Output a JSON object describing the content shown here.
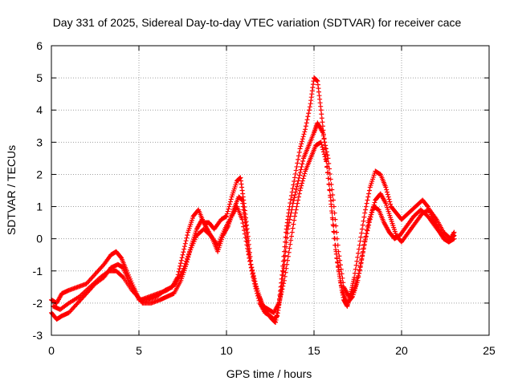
{
  "chart_data": {
    "type": "scatter",
    "title": "Day 331 of 2025, Sidereal Day-to-day VTEC variation (SDTVAR) for receiver cace",
    "xlabel": "GPS time / hours",
    "ylabel": "SDTVAR / TECUs",
    "xlim": [
      0,
      25
    ],
    "ylim": [
      -3,
      6
    ],
    "xticks": [
      0,
      5,
      10,
      15,
      20,
      25
    ],
    "yticks": [
      -3,
      -2,
      -1,
      0,
      1,
      2,
      3,
      4,
      5,
      6
    ],
    "grid": true,
    "marker": "plus",
    "color": "#ff0000",
    "series": [
      {
        "x": [
          0,
          0.3,
          0.6,
          1.0,
          1.5,
          2.0,
          2.5,
          3.0,
          3.4,
          3.7,
          4.0,
          4.3,
          4.7,
          5.0,
          5.5,
          6.0,
          6.5,
          6.9,
          7.2,
          7.5,
          7.8,
          8.1,
          8.4,
          8.7,
          9.0,
          9.3,
          9.7,
          10.0,
          10.3,
          10.6,
          10.8,
          11.0,
          11.2,
          11.4,
          11.7,
          12.0,
          12.3,
          12.6,
          12.8,
          13.0,
          13.2,
          13.4,
          13.6,
          13.9,
          14.2,
          14.5,
          14.8,
          15.0,
          15.2,
          15.4,
          15.6,
          15.9,
          16.2,
          16.5,
          16.7,
          16.9,
          17.1,
          17.3,
          17.6,
          17.9,
          18.2,
          18.5,
          18.8,
          19.1,
          19.4,
          19.7,
          20.0,
          20.4,
          20.8,
          21.2,
          21.5,
          21.8,
          22.1,
          22.4,
          22.7,
          23.0
        ],
        "y": [
          -1.9,
          -2.0,
          -1.7,
          -1.6,
          -1.5,
          -1.4,
          -1.1,
          -0.8,
          -0.5,
          -0.4,
          -0.6,
          -1.0,
          -1.5,
          -1.9,
          -1.9,
          -1.8,
          -1.6,
          -1.5,
          -1.2,
          -0.5,
          0.2,
          0.7,
          0.9,
          0.5,
          0.5,
          0.3,
          0.6,
          0.7,
          1.3,
          1.8,
          1.9,
          1.1,
          0.2,
          -0.8,
          -1.5,
          -2.0,
          -2.3,
          -2.5,
          -2.6,
          -2.0,
          -1.0,
          0.2,
          1.0,
          1.9,
          2.8,
          3.4,
          4.2,
          5.0,
          4.9,
          4.0,
          3.0,
          1.5,
          -0.2,
          -1.3,
          -1.9,
          -2.1,
          -1.7,
          -1.2,
          -0.2,
          0.8,
          1.6,
          2.1,
          2.0,
          1.6,
          1.0,
          0.8,
          0.6,
          0.8,
          1.0,
          1.2,
          1.0,
          0.6,
          0.3,
          0.0,
          -0.1,
          0.2
        ]
      },
      {
        "x": [
          0,
          0.3,
          0.6,
          1.0,
          1.5,
          2.0,
          2.5,
          3.0,
          3.4,
          3.8,
          4.1,
          4.4,
          4.8,
          5.2,
          5.7,
          6.2,
          6.6,
          7.0,
          7.4,
          7.7,
          8.0,
          8.3,
          8.6,
          8.9,
          9.2,
          9.5,
          9.8,
          10.1,
          10.4,
          10.7,
          10.9,
          11.1,
          11.3,
          11.6,
          11.9,
          12.2,
          12.5,
          12.7,
          12.9,
          13.1,
          13.3,
          13.5,
          13.8,
          14.1,
          14.4,
          14.7,
          15.0,
          15.2,
          15.5,
          15.8,
          16.1,
          16.4,
          16.7,
          17.0,
          17.3,
          17.6,
          17.9,
          18.2,
          18.5,
          18.8,
          19.1,
          19.4,
          19.7,
          20.0,
          20.4,
          20.8,
          21.2,
          21.6,
          22.0,
          22.4,
          22.8,
          23.0
        ],
        "y": [
          -2.3,
          -2.5,
          -2.4,
          -2.3,
          -2.0,
          -1.7,
          -1.4,
          -1.2,
          -0.9,
          -0.8,
          -0.9,
          -1.3,
          -1.7,
          -2.0,
          -2.0,
          -1.9,
          -1.8,
          -1.7,
          -1.3,
          -0.8,
          -0.2,
          0.3,
          0.6,
          0.3,
          0.0,
          -0.4,
          0.1,
          0.4,
          0.9,
          1.3,
          1.2,
          0.4,
          -0.6,
          -1.4,
          -2.0,
          -2.3,
          -2.4,
          -2.5,
          -2.4,
          -1.7,
          -0.8,
          0.3,
          1.1,
          1.8,
          2.5,
          2.9,
          3.3,
          3.6,
          3.3,
          2.5,
          1.2,
          -0.4,
          -1.5,
          -1.8,
          -1.6,
          -1.0,
          -0.1,
          0.6,
          1.2,
          1.4,
          1.1,
          0.6,
          0.1,
          -0.1,
          0.2,
          0.5,
          0.8,
          0.9,
          0.6,
          0.2,
          0.0,
          0.1
        ]
      },
      {
        "x": [
          0.1,
          0.5,
          1.0,
          1.6,
          2.2,
          2.8,
          3.3,
          3.7,
          4.1,
          4.6,
          5.1,
          5.6,
          6.1,
          6.6,
          7.1,
          7.5,
          7.9,
          8.3,
          8.7,
          9.1,
          9.5,
          9.9,
          10.3,
          10.6,
          10.9,
          11.2,
          11.5,
          11.8,
          12.1,
          12.4,
          12.7,
          13.0,
          13.3,
          13.6,
          13.9,
          14.2,
          14.5,
          14.8,
          15.1,
          15.4,
          15.7,
          16.0,
          16.3,
          16.6,
          16.9,
          17.2,
          17.5,
          17.8,
          18.1,
          18.4,
          18.7,
          19.0,
          19.3,
          19.6,
          19.9,
          20.3,
          20.7,
          21.1,
          21.5,
          21.9,
          22.3,
          22.7,
          23.0
        ],
        "y": [
          -2.1,
          -2.2,
          -2.0,
          -1.8,
          -1.5,
          -1.2,
          -1.0,
          -1.0,
          -1.2,
          -1.6,
          -1.9,
          -1.8,
          -1.7,
          -1.6,
          -1.4,
          -1.0,
          -0.4,
          0.1,
          0.3,
          0.1,
          -0.2,
          0.3,
          0.7,
          1.0,
          0.6,
          -0.3,
          -1.1,
          -1.7,
          -2.1,
          -2.2,
          -2.3,
          -2.0,
          -1.3,
          -0.3,
          0.7,
          1.5,
          2.1,
          2.5,
          2.9,
          3.0,
          2.4,
          1.0,
          -0.6,
          -1.6,
          -2.0,
          -1.8,
          -1.3,
          -0.4,
          0.5,
          1.0,
          0.9,
          0.5,
          0.2,
          0.0,
          0.1,
          0.4,
          0.7,
          0.9,
          0.7,
          0.4,
          0.1,
          -0.1,
          0.0
        ]
      }
    ]
  }
}
